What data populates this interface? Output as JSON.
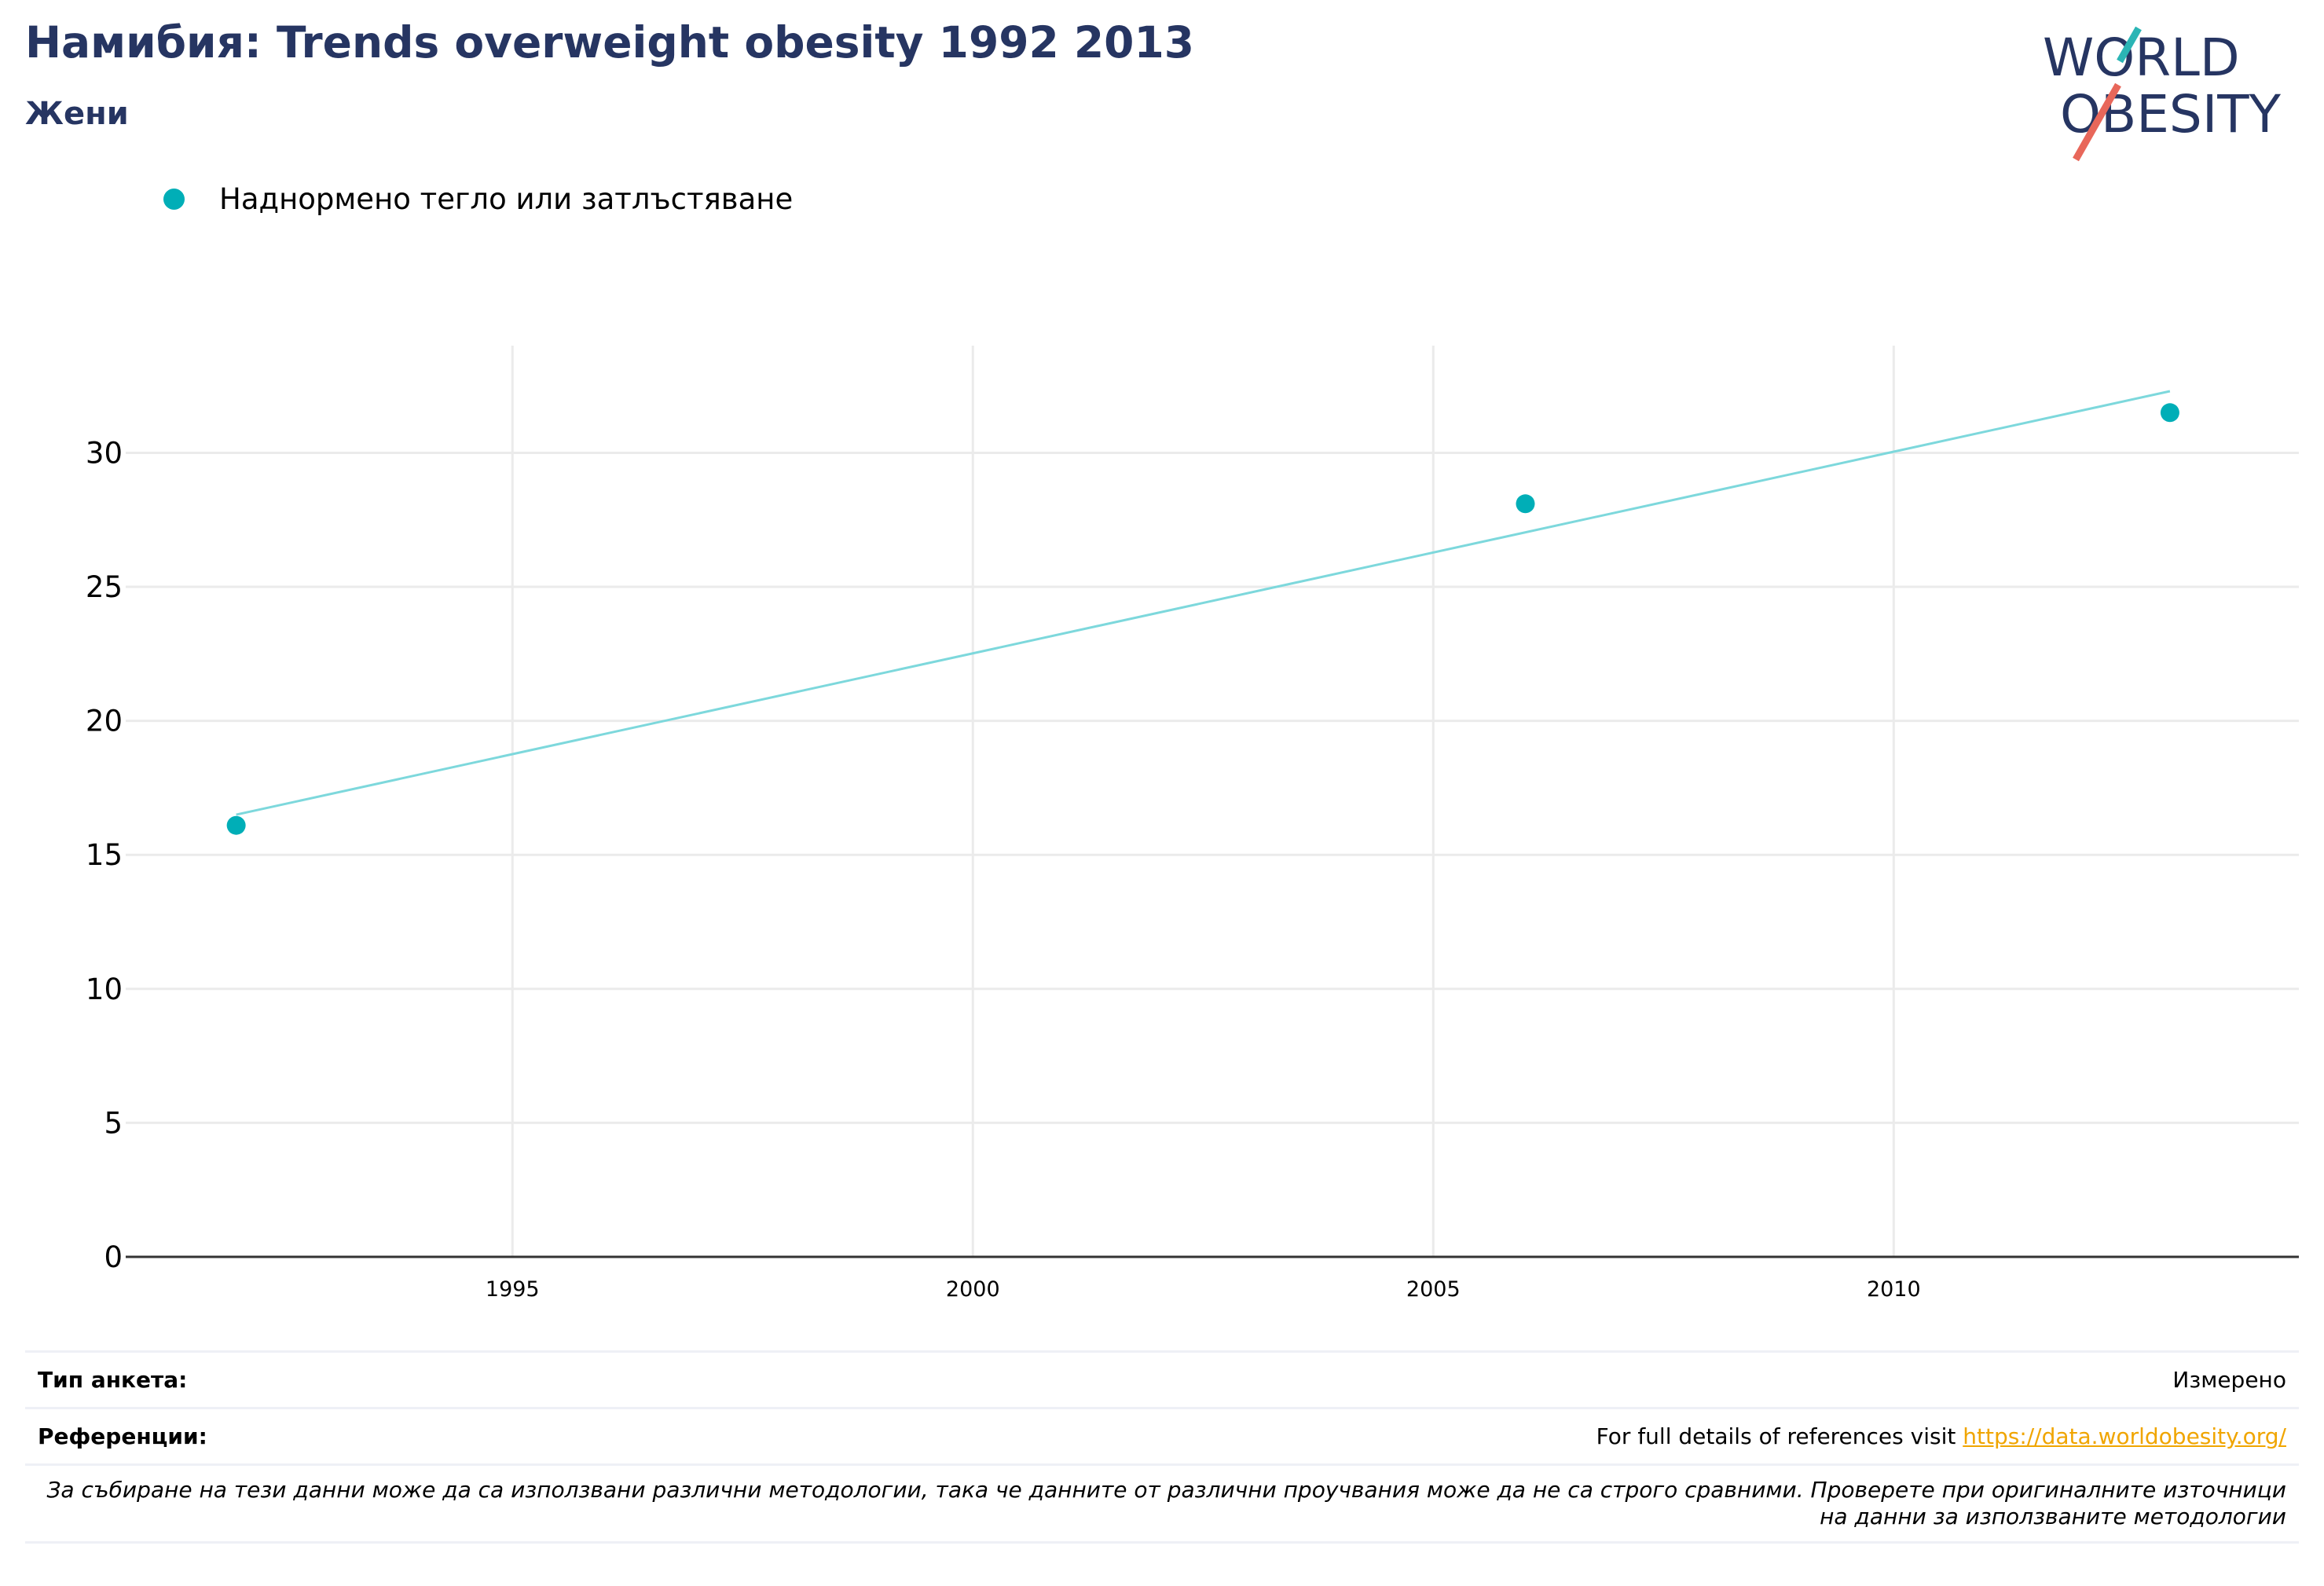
{
  "header": {
    "title": "Намибия: Trends overweight obesity 1992 2013",
    "subtitle": "Жени"
  },
  "logo": {
    "line1": "WORLD",
    "line2": "OBESITY",
    "colors": {
      "text": "#263562",
      "slash_top": "#2bb5b5",
      "slash_bottom": "#e8675a"
    }
  },
  "legend": {
    "label": "Наднормено тегло или затлъстяване",
    "color": "#00aeb7"
  },
  "chart_data": {
    "type": "scatter",
    "title": "",
    "xlabel": "",
    "ylabel": "",
    "x_ticks": [
      "1995",
      "2000",
      "2005",
      "2010"
    ],
    "y_ticks": [
      "0",
      "5",
      "10",
      "15",
      "20",
      "25",
      "30"
    ],
    "xlim": [
      1990.8,
      2014.4
    ],
    "ylim": [
      0,
      34
    ],
    "grid": true,
    "legend_position": "top-left",
    "series": [
      {
        "name": "Наднормено тегло или затлъстяване",
        "color": "#00aeb7",
        "points": [
          {
            "x": 1992,
            "y": 16.1
          },
          {
            "x": 2006,
            "y": 28.1
          },
          {
            "x": 2013,
            "y": 31.5
          }
        ],
        "trendline": {
          "color": "#7dd8dc",
          "start": {
            "x": 1992,
            "y": 16.5
          },
          "end": {
            "x": 2013,
            "y": 32.3
          }
        }
      }
    ]
  },
  "footer": {
    "survey_type_label": "Тип анкета:",
    "survey_type_value": "Измерено",
    "references_label": "Референции:",
    "references_text": "For full details of references visit ",
    "references_link": "https://data.worldobesity.org/",
    "note": "За събиране на тези данни може да са използвани различни методологии, така че данните от различни проучвания може да не са строго сравними. Проверете при оригиналните източници на данни за използваните методологии"
  }
}
